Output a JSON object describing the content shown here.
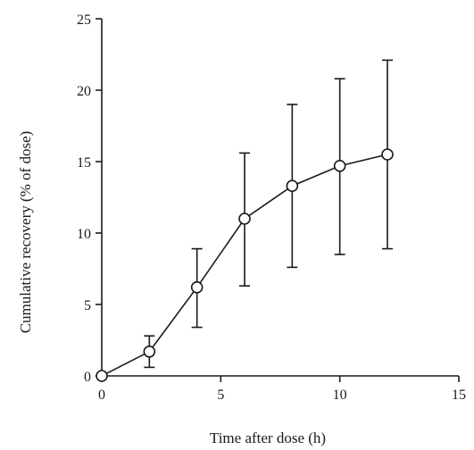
{
  "chart_data": {
    "type": "line",
    "title": "",
    "xlabel": "Time after dose (h)",
    "ylabel": "Cumulative recovery (% of dose)",
    "xlim": [
      0,
      15
    ],
    "ylim": [
      0,
      25
    ],
    "xticks": [
      0,
      5,
      10,
      15
    ],
    "yticks": [
      0,
      5,
      10,
      15,
      20,
      25
    ],
    "x_tick_labels": [
      "0",
      "5",
      "10",
      "15"
    ],
    "y_tick_labels": [
      "0",
      "5",
      "10",
      "15",
      "20",
      "25"
    ],
    "grid": false,
    "legend": "none",
    "marker": "open-circle",
    "color": "#1a1a1a",
    "series": [
      {
        "x": [
          0,
          2,
          4,
          6,
          8,
          10,
          12
        ],
        "y": [
          0,
          1.7,
          6.2,
          11.0,
          13.3,
          14.7,
          15.5
        ],
        "error_low": [
          0,
          0.6,
          3.4,
          6.3,
          7.6,
          8.5,
          8.9
        ],
        "error_high": [
          0,
          2.8,
          8.9,
          15.6,
          19.0,
          20.8,
          22.1
        ]
      }
    ]
  }
}
